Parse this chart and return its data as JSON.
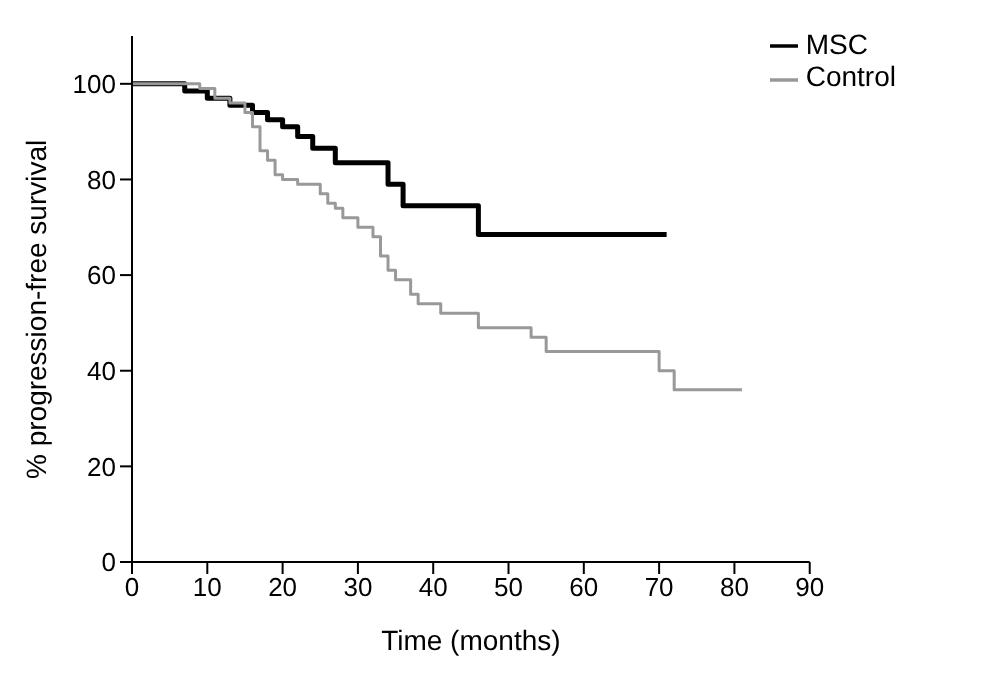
{
  "chart_data": {
    "type": "step",
    "xlabel": "Time (months)",
    "ylabel": "% progression-free survival",
    "xlim": [
      0,
      90
    ],
    "xticks": [
      0,
      10,
      20,
      30,
      40,
      50,
      60,
      70,
      80,
      90
    ],
    "ylim": [
      0,
      110
    ],
    "yticks": [
      0,
      20,
      40,
      60,
      80,
      100
    ],
    "legend": "top right",
    "marker": "none",
    "series": [
      {
        "name": "MSC",
        "color": "#000000",
        "x": [
          0,
          7,
          10,
          13,
          16,
          18,
          20,
          22,
          24,
          27,
          34,
          36,
          46,
          71
        ],
        "values": [
          100,
          98.5,
          97,
          95.5,
          94,
          92.5,
          91,
          89,
          86.5,
          83.5,
          79,
          74.5,
          68.5,
          68.5
        ]
      },
      {
        "name": "Control",
        "color": "#999999",
        "x": [
          0,
          9,
          11,
          13,
          15,
          16,
          17,
          18,
          19,
          20,
          22,
          25,
          26,
          27,
          28,
          30,
          32,
          33,
          34,
          35,
          37,
          38,
          41,
          46,
          53,
          55,
          70,
          72,
          81
        ],
        "values": [
          100,
          99,
          97,
          96,
          94,
          91,
          86,
          84,
          81,
          80,
          79,
          77,
          75,
          74,
          72,
          70,
          68,
          64,
          61,
          59,
          56,
          54,
          52,
          49,
          47,
          44,
          40,
          36,
          36
        ]
      }
    ]
  }
}
